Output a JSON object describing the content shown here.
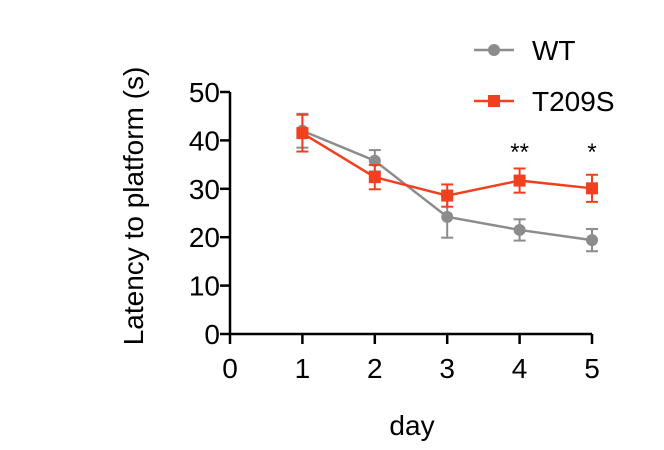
{
  "chart_data": {
    "type": "line",
    "xlabel": "day",
    "ylabel": "Latency to platform (s)",
    "xlim": [
      0,
      5
    ],
    "ylim": [
      0,
      50
    ],
    "x_ticks": [
      "0",
      "1",
      "2",
      "3",
      "4",
      "5"
    ],
    "y_ticks": [
      "0",
      "10",
      "20",
      "30",
      "40",
      "50"
    ],
    "grid": false,
    "legend_position": "top-right",
    "x": [
      1,
      2,
      3,
      4,
      5
    ],
    "series": [
      {
        "name": "WT",
        "color": "#8c8c8c",
        "marker": "circle",
        "values": [
          42,
          35.8,
          24.2,
          21.5,
          19.4
        ],
        "error": [
          3.5,
          2.2,
          4.3,
          2.2,
          2.3
        ]
      },
      {
        "name": "T209S",
        "color": "#f0401f",
        "marker": "square",
        "values": [
          41.5,
          32.4,
          28.6,
          31.7,
          30.1
        ],
        "error": [
          3.8,
          2.5,
          2.3,
          2.5,
          2.8
        ]
      }
    ],
    "annotations": [
      {
        "x": 4,
        "text": "**"
      },
      {
        "x": 5,
        "text": "*"
      }
    ]
  }
}
